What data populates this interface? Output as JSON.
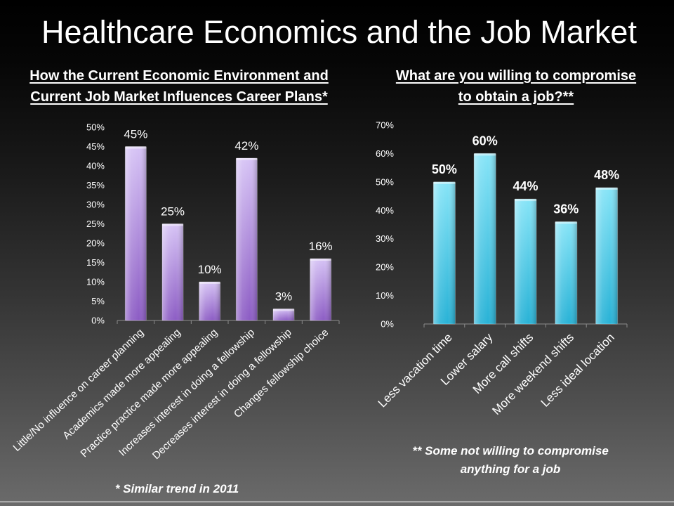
{
  "title": "Healthcare Economics and the Job Market",
  "chart_data": [
    {
      "type": "bar",
      "title_lines": [
        "How the Current Economic Environment and",
        "Current Job Market Influences Career Plans*"
      ],
      "categories": [
        "Little/No influence on career planning",
        "Academics made more appealing",
        "Practice practice made  more appealing",
        "Increases interest in doing a fellowship",
        "Decreases interest in doing a fellowship",
        "Changes fellowship choice"
      ],
      "values": [
        45,
        25,
        10,
        42,
        3,
        16
      ],
      "data_labels": [
        "45%",
        "25%",
        "10%",
        "42%",
        "3%",
        "16%"
      ],
      "ylim": [
        0,
        50
      ],
      "yticks": [
        0,
        5,
        10,
        15,
        20,
        25,
        30,
        35,
        40,
        45,
        50
      ],
      "ytick_labels": [
        "0%",
        "5%",
        "10%",
        "15%",
        "20%",
        "25%",
        "30%",
        "35%",
        "40%",
        "45%",
        "50%"
      ],
      "grid": false,
      "colors": {
        "bar_top": "#d6c3f5",
        "bar_bottom": "#8c5cc4"
      },
      "footnote_lines": [
        "* Similar trend in 2011"
      ]
    },
    {
      "type": "bar",
      "title_lines": [
        "What are you willing to compromise",
        "to obtain a job?**"
      ],
      "categories": [
        "Less vacation time",
        "Lower salary",
        "More call shifts",
        "More weekend shifts",
        "Less ideal location"
      ],
      "values": [
        50,
        60,
        44,
        36,
        48
      ],
      "data_labels": [
        "50%",
        "60%",
        "44%",
        "36%",
        "48%"
      ],
      "ylim": [
        0,
        70
      ],
      "yticks": [
        0,
        10,
        20,
        30,
        40,
        50,
        60,
        70
      ],
      "ytick_labels": [
        "0%",
        "10%",
        "20%",
        "30%",
        "40%",
        "50%",
        "60%",
        "70%"
      ],
      "grid": false,
      "colors": {
        "bar_top": "#86e4f7",
        "bar_bottom": "#28b2d6"
      },
      "footnote_lines": [
        "** Some not willing to compromise",
        "anything for a job"
      ]
    }
  ]
}
